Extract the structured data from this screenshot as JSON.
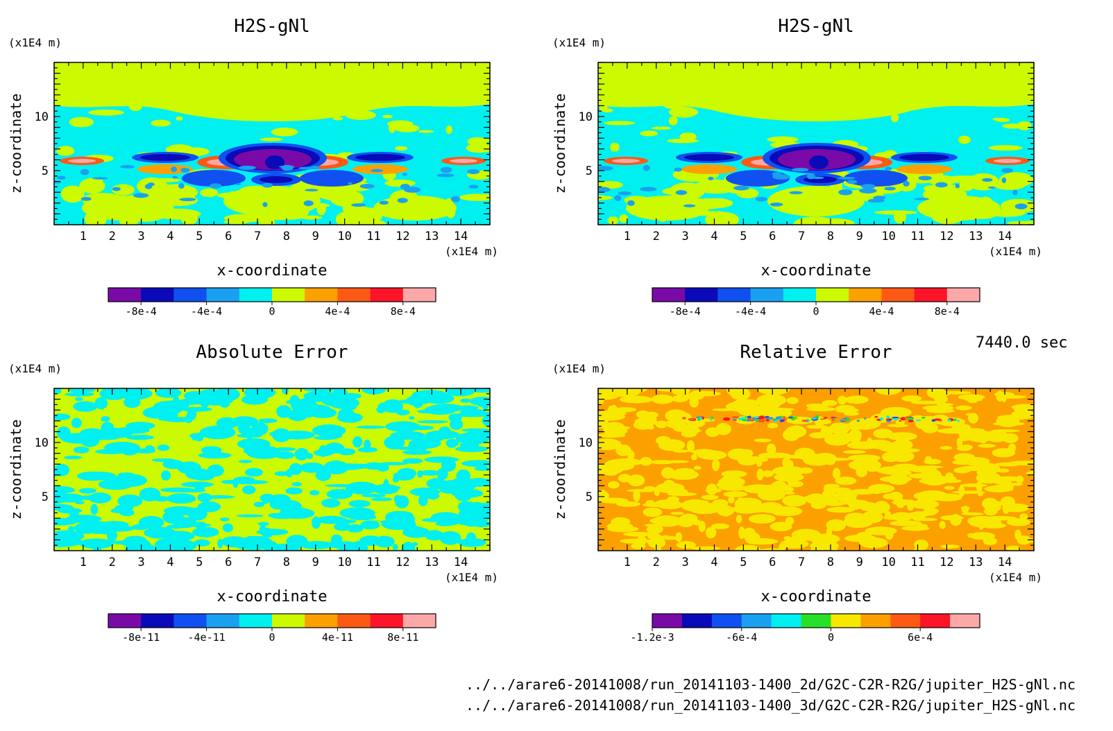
{
  "time_label": "7440.0 sec",
  "file_paths": [
    "../../arare6-20141008/run_20141103-1400_2d/G2C-C2R-R2G/jupiter_H2S-gNl.nc",
    "../../arare6-20141008/run_20141103-1400_3d/G2C-C2R-R2G/jupiter_H2S-gNl.nc"
  ],
  "colors": {
    "purple": "#7a0aa8",
    "navy": "#0a0ab8",
    "blue": "#1050f0",
    "azure": "#1aa0f0",
    "cyan": "#00f0f0",
    "yellowgreen": "#ccfa00",
    "orange": "#fca000",
    "redorange": "#fc5a14",
    "red": "#fc1428",
    "pink": "#fca8a8",
    "green": "#28e028",
    "yellow": "#f8e800"
  },
  "chart_data": [
    {
      "type": "heatmap",
      "title": "H2S-gNl",
      "xlabel": "x-coordinate",
      "ylabel": "z-coordinate",
      "xunit": "(x1E4 m)",
      "yunit": "(x1E4 m)",
      "xlim": [
        0,
        15
      ],
      "ylim": [
        0,
        15
      ],
      "xticks": [
        "1",
        "2",
        "3",
        "4",
        "5",
        "6",
        "7",
        "8",
        "9",
        "10",
        "11",
        "12",
        "13",
        "14"
      ],
      "yticks": [
        "5",
        "10"
      ],
      "colorbar": {
        "levels": [
          "purple",
          "navy",
          "blue",
          "azure",
          "cyan",
          "yellowgreen",
          "orange",
          "redorange",
          "red",
          "pink"
        ],
        "tick_labels": [
          "-8e-4",
          "-4e-4",
          "0",
          "4e-4",
          "8e-4"
        ],
        "label_positions": [
          1,
          3,
          5,
          7,
          9
        ]
      }
    },
    {
      "type": "heatmap",
      "title": "H2S-gNl",
      "xlabel": "x-coordinate",
      "ylabel": "z-coordinate",
      "xunit": "(x1E4 m)",
      "yunit": "(x1E4 m)",
      "xlim": [
        0,
        15
      ],
      "ylim": [
        0,
        15
      ],
      "xticks": [
        "1",
        "2",
        "3",
        "4",
        "5",
        "6",
        "7",
        "8",
        "9",
        "10",
        "11",
        "12",
        "13",
        "14"
      ],
      "yticks": [
        "5",
        "10"
      ],
      "colorbar": {
        "levels": [
          "purple",
          "navy",
          "blue",
          "azure",
          "cyan",
          "yellowgreen",
          "orange",
          "redorange",
          "red",
          "pink"
        ],
        "tick_labels": [
          "-8e-4",
          "-4e-4",
          "0",
          "4e-4",
          "8e-4"
        ],
        "label_positions": [
          1,
          3,
          5,
          7,
          9
        ]
      }
    },
    {
      "type": "heatmap",
      "title": "Absolute Error",
      "xlabel": "x-coordinate",
      "ylabel": "z-coordinate",
      "xunit": "(x1E4 m)",
      "yunit": "(x1E4 m)",
      "xlim": [
        0,
        15
      ],
      "ylim": [
        0,
        15
      ],
      "xticks": [
        "1",
        "2",
        "3",
        "4",
        "5",
        "6",
        "7",
        "8",
        "9",
        "10",
        "11",
        "12",
        "13",
        "14"
      ],
      "yticks": [
        "5",
        "10"
      ],
      "colorbar": {
        "levels": [
          "purple",
          "navy",
          "blue",
          "azure",
          "cyan",
          "yellowgreen",
          "orange",
          "redorange",
          "red",
          "pink"
        ],
        "tick_labels": [
          "-8e-11",
          "-4e-11",
          "0",
          "4e-11",
          "8e-11"
        ],
        "label_positions": [
          1,
          3,
          5,
          7,
          9
        ]
      }
    },
    {
      "type": "heatmap",
      "title": "Relative Error",
      "xlabel": "x-coordinate",
      "ylabel": "z-coordinate",
      "xunit": "(x1E4 m)",
      "yunit": "(x1E4 m)",
      "xlim": [
        0,
        15
      ],
      "ylim": [
        0,
        15
      ],
      "xticks": [
        "1",
        "2",
        "3",
        "4",
        "5",
        "6",
        "7",
        "8",
        "9",
        "10",
        "11",
        "12",
        "13",
        "14"
      ],
      "yticks": [
        "5",
        "10"
      ],
      "colorbar": {
        "levels": [
          "purple",
          "navy",
          "blue",
          "azure",
          "cyan",
          "green",
          "yellow",
          "orange",
          "redorange",
          "red",
          "pink"
        ],
        "tick_labels": [
          "-1.2e-3",
          "-6e-4",
          "0",
          "6e-4"
        ],
        "label_positions": [
          0,
          3,
          6,
          9
        ]
      }
    }
  ]
}
